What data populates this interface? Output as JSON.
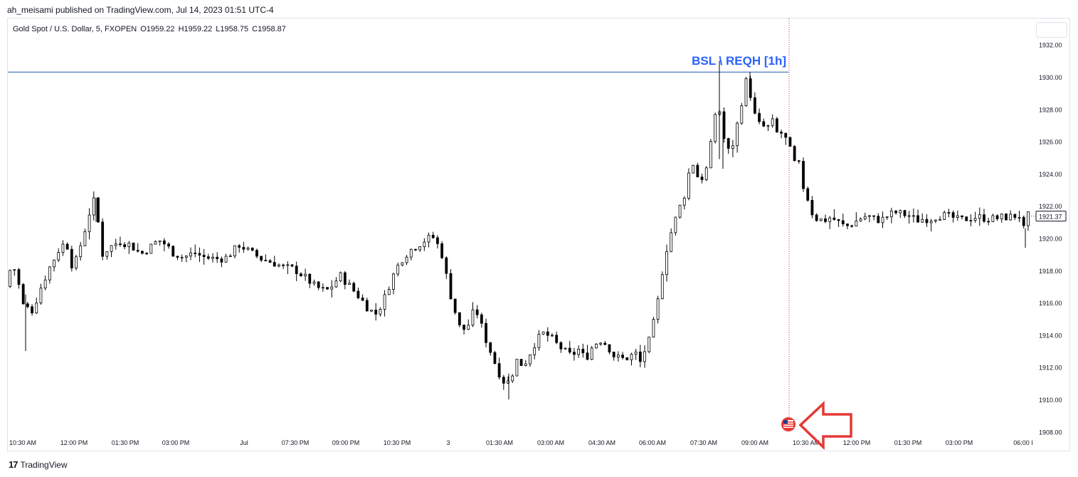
{
  "header": {
    "publisher": "ah_meisami published on TradingView.com, Jul 14, 2023 01:51 UTC-4"
  },
  "symbol": {
    "name": "Gold Spot / U.S. Dollar, 5, FXOPEN",
    "open": "O1959.22",
    "high": "H1959.22",
    "low": "L1958.75",
    "close": "C1958.87"
  },
  "colors": {
    "candle": "#000000",
    "level_line": "#1e5bab",
    "annotation_text": "#2962ff",
    "event_line": "#d32f2f",
    "arrow": "#e53935",
    "flag": "#e53935"
  },
  "icons": {
    "event_flag": "us-flag-icon",
    "arrow": "arrow-left-outline-icon",
    "logo": "tradingview-logo-icon"
  },
  "annotation": {
    "label": "BSL \\ REQH [1h]",
    "level": 1930.3
  },
  "price_tag": "1921.37",
  "footer": {
    "brand": "TradingView"
  },
  "chart_data": {
    "type": "candlestick",
    "y_axis": {
      "range": [
        1907.9,
        1932.7
      ],
      "ticks": [
        "1932.00",
        "1930.00",
        "1928.00",
        "1926.00",
        "1924.00",
        "1922.00",
        "1920.00",
        "1918.00",
        "1916.00",
        "1914.00",
        "1912.00",
        "1910.00",
        "1908.00"
      ],
      "position": "right"
    },
    "x_axis": {
      "labels": [
        "10:30 AM",
        "12:00 PM",
        "01:30 PM",
        "03:00 PM",
        "Jul",
        "07:30 PM",
        "09:00 PM",
        "10:30 PM",
        "3",
        "01:30 AM",
        "03:00 AM",
        "04:30 AM",
        "06:00 AM",
        "07:30 AM",
        "09:00 AM",
        "10:30 AM",
        "12:00 PM",
        "01:30 PM",
        "03:00 PM",
        "06:00 I"
      ]
    },
    "grid": false,
    "price_path": [
      [
        0,
        1917.0
      ],
      [
        8,
        1918.3
      ],
      [
        14,
        1918.0
      ],
      [
        25,
        1915.8
      ],
      [
        38,
        1915.5
      ],
      [
        50,
        1917.0
      ],
      [
        62,
        1918.2
      ],
      [
        75,
        1919.3
      ],
      [
        85,
        1919.8
      ],
      [
        95,
        1918.0
      ],
      [
        103,
        1919.2
      ],
      [
        112,
        1920.6
      ],
      [
        118,
        1921.6
      ],
      [
        124,
        1922.3
      ],
      [
        130,
        1921.0
      ],
      [
        136,
        1919.0
      ],
      [
        145,
        1919.4
      ],
      [
        160,
        1919.8
      ],
      [
        175,
        1919.6
      ],
      [
        190,
        1919.0
      ],
      [
        205,
        1919.5
      ],
      [
        215,
        1919.9
      ],
      [
        225,
        1919.6
      ],
      [
        235,
        1919.1
      ],
      [
        250,
        1918.8
      ],
      [
        265,
        1919.1
      ],
      [
        280,
        1918.8
      ],
      [
        300,
        1918.7
      ],
      [
        310,
        1918.8
      ],
      [
        322,
        1919.3
      ],
      [
        328,
        1919.6
      ],
      [
        345,
        1919.1
      ],
      [
        360,
        1918.7
      ],
      [
        375,
        1918.5
      ],
      [
        390,
        1918.2
      ],
      [
        405,
        1918.1
      ],
      [
        420,
        1917.6
      ],
      [
        435,
        1917.0
      ],
      [
        450,
        1916.7
      ],
      [
        460,
        1917.1
      ],
      [
        470,
        1917.7
      ],
      [
        480,
        1917.2
      ],
      [
        490,
        1916.7
      ],
      [
        500,
        1916.2
      ],
      [
        510,
        1915.6
      ],
      [
        520,
        1915.3
      ],
      [
        530,
        1916.0
      ],
      [
        540,
        1917.2
      ],
      [
        550,
        1918.2
      ],
      [
        560,
        1918.9
      ],
      [
        570,
        1919.3
      ],
      [
        580,
        1919.6
      ],
      [
        590,
        1919.9
      ],
      [
        600,
        1920.1
      ],
      [
        607,
        1919.6
      ],
      [
        615,
        1918.8
      ],
      [
        622,
        1917.0
      ],
      [
        632,
        1915.4
      ],
      [
        640,
        1914.2
      ],
      [
        650,
        1914.6
      ],
      [
        660,
        1915.7
      ],
      [
        667,
        1914.8
      ],
      [
        675,
        1913.7
      ],
      [
        683,
        1912.8
      ],
      [
        690,
        1912.0
      ],
      [
        697,
        1911.3
      ],
      [
        704,
        1910.9
      ],
      [
        712,
        1911.6
      ],
      [
        720,
        1912.6
      ],
      [
        727,
        1912.0
      ],
      [
        735,
        1912.7
      ],
      [
        745,
        1913.6
      ],
      [
        755,
        1914.1
      ],
      [
        765,
        1913.9
      ],
      [
        775,
        1913.4
      ],
      [
        785,
        1913.0
      ],
      [
        795,
        1912.7
      ],
      [
        805,
        1913.1
      ],
      [
        815,
        1912.5
      ],
      [
        825,
        1913.3
      ],
      [
        835,
        1913.7
      ],
      [
        845,
        1913.4
      ],
      [
        855,
        1912.7
      ],
      [
        865,
        1912.5
      ],
      [
        875,
        1912.6
      ],
      [
        885,
        1912.9
      ],
      [
        892,
        1912.3
      ],
      [
        898,
        1913.0
      ],
      [
        905,
        1913.7
      ],
      [
        912,
        1915.0
      ],
      [
        918,
        1916.4
      ],
      [
        925,
        1918.6
      ],
      [
        932,
        1919.9
      ],
      [
        940,
        1921.0
      ],
      [
        948,
        1922.0
      ],
      [
        955,
        1922.8
      ],
      [
        960,
        1924.0
      ],
      [
        965,
        1925.0
      ],
      [
        970,
        1923.5
      ],
      [
        975,
        1924.2
      ],
      [
        980,
        1923.6
      ],
      [
        985,
        1924.3
      ],
      [
        990,
        1925.5
      ],
      [
        994,
        1926.5
      ],
      [
        998,
        1928.0
      ],
      [
        1000,
        1929.5
      ],
      [
        1004,
        1927.6
      ],
      [
        1008,
        1926.4
      ],
      [
        1013,
        1925.7
      ],
      [
        1018,
        1925.2
      ],
      [
        1023,
        1926.0
      ],
      [
        1028,
        1927.0
      ],
      [
        1033,
        1928.0
      ],
      [
        1038,
        1929.6
      ],
      [
        1043,
        1929.8
      ],
      [
        1048,
        1928.6
      ],
      [
        1053,
        1927.6
      ],
      [
        1058,
        1927.0
      ],
      [
        1063,
        1927.2
      ],
      [
        1068,
        1926.6
      ],
      [
        1073,
        1927.0
      ],
      [
        1078,
        1927.2
      ],
      [
        1083,
        1926.5
      ],
      [
        1088,
        1926.6
      ],
      [
        1093,
        1926.4
      ],
      [
        1098,
        1926.0
      ],
      [
        1103,
        1925.4
      ],
      [
        1108,
        1924.6
      ],
      [
        1113,
        1925.0
      ],
      [
        1118,
        1923.8
      ],
      [
        1123,
        1922.8
      ],
      [
        1128,
        1922.4
      ],
      [
        1133,
        1921.6
      ],
      [
        1140,
        1921.2
      ],
      [
        1150,
        1921.1
      ],
      [
        1160,
        1921.3
      ],
      [
        1170,
        1921.0
      ],
      [
        1180,
        1920.7
      ],
      [
        1190,
        1920.9
      ],
      [
        1200,
        1921.2
      ],
      [
        1210,
        1921.4
      ],
      [
        1220,
        1921.2
      ],
      [
        1230,
        1921.1
      ],
      [
        1240,
        1921.4
      ],
      [
        1250,
        1921.6
      ],
      [
        1260,
        1921.5
      ],
      [
        1270,
        1921.4
      ],
      [
        1280,
        1921.1
      ],
      [
        1290,
        1921.2
      ],
      [
        1300,
        1921.2
      ],
      [
        1310,
        1921.4
      ],
      [
        1320,
        1921.4
      ],
      [
        1330,
        1921.3
      ],
      [
        1340,
        1921.1
      ],
      [
        1350,
        1921.2
      ],
      [
        1360,
        1921.3
      ],
      [
        1370,
        1921.3
      ],
      [
        1380,
        1921.2
      ],
      [
        1390,
        1921.2
      ],
      [
        1400,
        1921.3
      ],
      [
        1410,
        1921.3
      ],
      [
        1420,
        1921.4
      ],
      [
        1427,
        1921.4
      ],
      [
        1430,
        1920.3
      ],
      [
        1433,
        1921.2
      ],
      [
        1437,
        1921.4
      ]
    ],
    "candle_count": 232,
    "spikes": [
      {
        "x": 1000,
        "high": 1931.0,
        "low": 1924.9
      },
      {
        "x": 1005,
        "high": 1927.5,
        "low": 1924.3
      },
      {
        "x": 1430,
        "high": 1920.6,
        "low": 1919.4
      },
      {
        "x": 124,
        "high": 1922.5,
        "low": 1921.0
      },
      {
        "x": 25,
        "high": 1916.5,
        "low": 1913.0
      },
      {
        "x": 704,
        "high": 1911.6,
        "low": 1910.0
      },
      {
        "x": 1043,
        "high": 1930.3,
        "low": 1928.8
      }
    ]
  }
}
